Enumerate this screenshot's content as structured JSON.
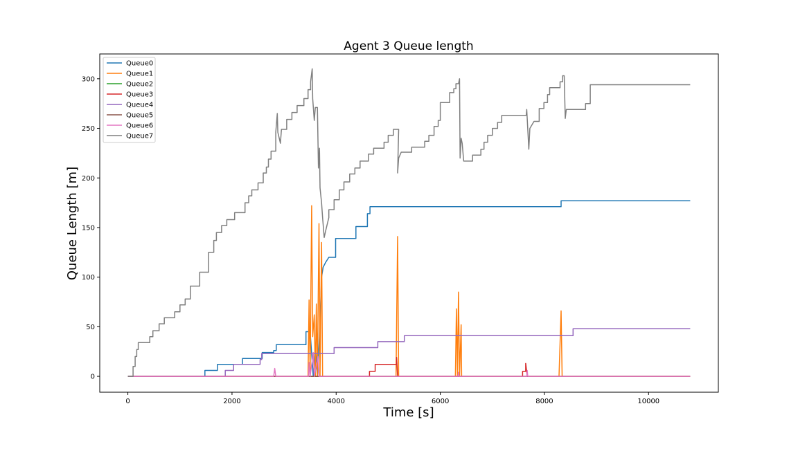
{
  "chart_data": {
    "type": "line",
    "title": "Agent 3 Queue length",
    "xlabel": "Time [s]",
    "ylabel": "Queue Length [m]",
    "xlim": [
      -540,
      11340
    ],
    "ylim": [
      -16,
      325
    ],
    "xticks": [
      0,
      2000,
      4000,
      6000,
      8000,
      10000
    ],
    "yticks": [
      0,
      50,
      100,
      150,
      200,
      250,
      300
    ],
    "grid": false,
    "legend_position": "upper-left",
    "series": [
      {
        "name": "Queue0",
        "color": "#1f77b4",
        "points": [
          [
            0,
            0
          ],
          [
            1480,
            0
          ],
          [
            1480,
            6
          ],
          [
            1720,
            6
          ],
          [
            1720,
            12
          ],
          [
            2200,
            12
          ],
          [
            2200,
            18
          ],
          [
            2580,
            18
          ],
          [
            2580,
            24
          ],
          [
            2800,
            24
          ],
          [
            2800,
            26
          ],
          [
            2850,
            26
          ],
          [
            2850,
            32
          ],
          [
            3420,
            32
          ],
          [
            3420,
            45
          ],
          [
            3500,
            45
          ],
          [
            3560,
            0
          ],
          [
            3600,
            30
          ],
          [
            3640,
            0
          ],
          [
            3680,
            40
          ],
          [
            3720,
            100
          ],
          [
            3750,
            110
          ],
          [
            3800,
            115
          ],
          [
            3860,
            120
          ],
          [
            3990,
            120
          ],
          [
            3990,
            139
          ],
          [
            4380,
            139
          ],
          [
            4380,
            151
          ],
          [
            4600,
            151
          ],
          [
            4600,
            164
          ],
          [
            4650,
            164
          ],
          [
            4650,
            171
          ],
          [
            8320,
            171
          ],
          [
            8320,
            177
          ],
          [
            10800,
            177
          ]
        ]
      },
      {
        "name": "Queue1",
        "color": "#ff7f0e",
        "points": [
          [
            0,
            0
          ],
          [
            3460,
            0
          ],
          [
            3480,
            77
          ],
          [
            3500,
            0
          ],
          [
            3530,
            172
          ],
          [
            3550,
            40
          ],
          [
            3580,
            62
          ],
          [
            3600,
            0
          ],
          [
            3620,
            73
          ],
          [
            3640,
            0
          ],
          [
            3670,
            154
          ],
          [
            3690,
            0
          ],
          [
            3720,
            135
          ],
          [
            3740,
            0
          ],
          [
            3760,
            0
          ],
          [
            5150,
            0
          ],
          [
            5180,
            141
          ],
          [
            5200,
            0
          ],
          [
            6290,
            0
          ],
          [
            6310,
            68
          ],
          [
            6330,
            0
          ],
          [
            6350,
            85
          ],
          [
            6370,
            0
          ],
          [
            6400,
            52
          ],
          [
            6410,
            0
          ],
          [
            8280,
            0
          ],
          [
            8320,
            66
          ],
          [
            8340,
            0
          ],
          [
            10800,
            0
          ]
        ]
      },
      {
        "name": "Queue2",
        "color": "#2ca02c",
        "points": [
          [
            0,
            0
          ],
          [
            10800,
            0
          ]
        ]
      },
      {
        "name": "Queue3",
        "color": "#d62728",
        "points": [
          [
            0,
            0
          ],
          [
            4640,
            0
          ],
          [
            4640,
            5
          ],
          [
            4750,
            5
          ],
          [
            4750,
            12
          ],
          [
            5160,
            12
          ],
          [
            5160,
            19
          ],
          [
            5180,
            0
          ],
          [
            7580,
            0
          ],
          [
            7580,
            5
          ],
          [
            7640,
            5
          ],
          [
            7640,
            13
          ],
          [
            7670,
            0
          ],
          [
            10800,
            0
          ]
        ]
      },
      {
        "name": "Queue4",
        "color": "#9467bd",
        "points": [
          [
            0,
            0
          ],
          [
            1870,
            0
          ],
          [
            1870,
            6
          ],
          [
            2030,
            6
          ],
          [
            2030,
            12
          ],
          [
            2540,
            12
          ],
          [
            2540,
            17
          ],
          [
            2570,
            17
          ],
          [
            2570,
            23
          ],
          [
            3960,
            23
          ],
          [
            3960,
            29
          ],
          [
            4800,
            29
          ],
          [
            4800,
            35
          ],
          [
            5310,
            35
          ],
          [
            5310,
            41
          ],
          [
            8550,
            41
          ],
          [
            8550,
            48
          ],
          [
            10800,
            48
          ]
        ]
      },
      {
        "name": "Queue5",
        "color": "#8c564b",
        "points": [
          [
            0,
            0
          ],
          [
            10800,
            0
          ]
        ]
      },
      {
        "name": "Queue6",
        "color": "#e377c2",
        "points": [
          [
            0,
            0
          ],
          [
            2800,
            0
          ],
          [
            2820,
            8
          ],
          [
            2840,
            0
          ],
          [
            3470,
            0
          ],
          [
            3480,
            14
          ],
          [
            3500,
            0
          ],
          [
            3560,
            24
          ],
          [
            3580,
            0
          ],
          [
            3650,
            20
          ],
          [
            3670,
            0
          ],
          [
            6340,
            0
          ],
          [
            6350,
            4
          ],
          [
            6360,
            0
          ],
          [
            7660,
            0
          ],
          [
            7670,
            6
          ],
          [
            7680,
            0
          ],
          [
            10800,
            0
          ]
        ]
      },
      {
        "name": "Queue7",
        "color": "#7f7f7f",
        "points": [
          [
            0,
            0
          ],
          [
            100,
            0
          ],
          [
            100,
            10
          ],
          [
            140,
            10
          ],
          [
            140,
            20
          ],
          [
            170,
            20
          ],
          [
            170,
            27
          ],
          [
            200,
            27
          ],
          [
            200,
            34
          ],
          [
            420,
            34
          ],
          [
            420,
            40
          ],
          [
            480,
            40
          ],
          [
            480,
            46
          ],
          [
            600,
            46
          ],
          [
            600,
            53
          ],
          [
            700,
            53
          ],
          [
            700,
            59
          ],
          [
            900,
            59
          ],
          [
            900,
            65
          ],
          [
            1000,
            65
          ],
          [
            1000,
            72
          ],
          [
            1100,
            72
          ],
          [
            1100,
            78
          ],
          [
            1200,
            78
          ],
          [
            1200,
            91
          ],
          [
            1380,
            91
          ],
          [
            1380,
            105
          ],
          [
            1550,
            105
          ],
          [
            1550,
            125
          ],
          [
            1650,
            125
          ],
          [
            1650,
            137
          ],
          [
            1700,
            137
          ],
          [
            1700,
            145
          ],
          [
            1800,
            145
          ],
          [
            1800,
            152
          ],
          [
            1900,
            152
          ],
          [
            1900,
            158
          ],
          [
            2050,
            158
          ],
          [
            2050,
            165
          ],
          [
            2250,
            165
          ],
          [
            2250,
            175
          ],
          [
            2320,
            175
          ],
          [
            2320,
            182
          ],
          [
            2380,
            182
          ],
          [
            2380,
            188
          ],
          [
            2500,
            188
          ],
          [
            2500,
            195
          ],
          [
            2600,
            195
          ],
          [
            2600,
            205
          ],
          [
            2660,
            205
          ],
          [
            2660,
            211
          ],
          [
            2700,
            211
          ],
          [
            2700,
            219
          ],
          [
            2750,
            219
          ],
          [
            2750,
            227
          ],
          [
            2840,
            227
          ],
          [
            2840,
            246
          ],
          [
            2870,
            265
          ],
          [
            2880,
            246
          ],
          [
            2930,
            235
          ],
          [
            2950,
            249
          ],
          [
            3050,
            249
          ],
          [
            3050,
            259
          ],
          [
            3150,
            259
          ],
          [
            3150,
            266
          ],
          [
            3250,
            266
          ],
          [
            3250,
            273
          ],
          [
            3380,
            273
          ],
          [
            3380,
            280
          ],
          [
            3460,
            280
          ],
          [
            3460,
            289
          ],
          [
            3510,
            289
          ],
          [
            3510,
            297
          ],
          [
            3540,
            310
          ],
          [
            3550,
            280
          ],
          [
            3580,
            258
          ],
          [
            3600,
            271
          ],
          [
            3640,
            271
          ],
          [
            3660,
            210
          ],
          [
            3680,
            230
          ],
          [
            3690,
            190
          ],
          [
            3720,
            175
          ],
          [
            3740,
            160
          ],
          [
            3770,
            140
          ],
          [
            3800,
            147
          ],
          [
            3860,
            160
          ],
          [
            3860,
            168
          ],
          [
            3960,
            168
          ],
          [
            3960,
            178
          ],
          [
            4060,
            178
          ],
          [
            4060,
            188
          ],
          [
            4150,
            188
          ],
          [
            4150,
            196
          ],
          [
            4260,
            196
          ],
          [
            4260,
            204
          ],
          [
            4360,
            204
          ],
          [
            4360,
            210
          ],
          [
            4460,
            210
          ],
          [
            4460,
            217
          ],
          [
            4620,
            217
          ],
          [
            4620,
            224
          ],
          [
            4720,
            224
          ],
          [
            4720,
            230
          ],
          [
            4920,
            230
          ],
          [
            4920,
            236
          ],
          [
            5000,
            236
          ],
          [
            5000,
            243
          ],
          [
            5100,
            243
          ],
          [
            5100,
            249
          ],
          [
            5200,
            249
          ],
          [
            5180,
            205
          ],
          [
            5200,
            220
          ],
          [
            5250,
            226
          ],
          [
            5450,
            226
          ],
          [
            5450,
            231
          ],
          [
            5700,
            231
          ],
          [
            5700,
            237
          ],
          [
            5780,
            237
          ],
          [
            5780,
            243
          ],
          [
            5880,
            243
          ],
          [
            5880,
            252
          ],
          [
            5960,
            252
          ],
          [
            5960,
            258
          ],
          [
            6000,
            258
          ],
          [
            6000,
            276
          ],
          [
            6180,
            276
          ],
          [
            6180,
            286
          ],
          [
            6260,
            286
          ],
          [
            6260,
            290
          ],
          [
            6300,
            290
          ],
          [
            6300,
            295
          ],
          [
            6350,
            295
          ],
          [
            6370,
            300
          ],
          [
            6380,
            220
          ],
          [
            6400,
            240
          ],
          [
            6420,
            235
          ],
          [
            6450,
            217
          ],
          [
            6620,
            217
          ],
          [
            6620,
            223
          ],
          [
            6780,
            223
          ],
          [
            6780,
            229
          ],
          [
            6840,
            229
          ],
          [
            6840,
            236
          ],
          [
            6910,
            236
          ],
          [
            6910,
            243
          ],
          [
            7000,
            243
          ],
          [
            7000,
            250
          ],
          [
            7100,
            250
          ],
          [
            7100,
            256
          ],
          [
            7180,
            256
          ],
          [
            7180,
            263
          ],
          [
            7650,
            263
          ],
          [
            7660,
            269
          ],
          [
            7700,
            229
          ],
          [
            7720,
            250
          ],
          [
            7800,
            257
          ],
          [
            7900,
            257
          ],
          [
            7900,
            270
          ],
          [
            7990,
            270
          ],
          [
            7990,
            276
          ],
          [
            8060,
            276
          ],
          [
            8060,
            284
          ],
          [
            8100,
            284
          ],
          [
            8100,
            291
          ],
          [
            8300,
            291
          ],
          [
            8300,
            297
          ],
          [
            8350,
            297
          ],
          [
            8350,
            303
          ],
          [
            8380,
            303
          ],
          [
            8400,
            260
          ],
          [
            8420,
            269
          ],
          [
            8790,
            269
          ],
          [
            8790,
            275
          ],
          [
            8880,
            275
          ],
          [
            8880,
            294
          ],
          [
            10800,
            294
          ]
        ]
      }
    ]
  }
}
